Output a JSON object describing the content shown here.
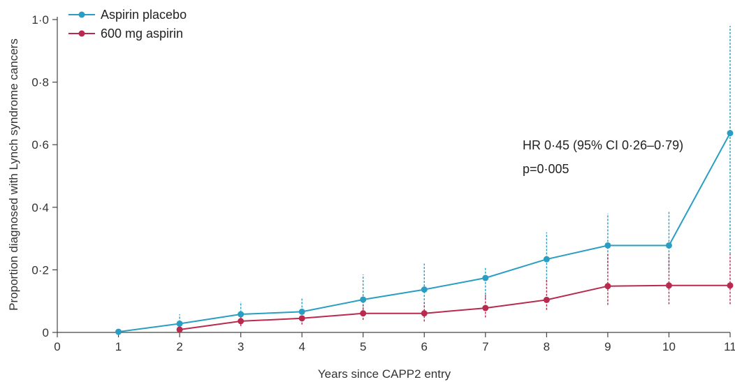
{
  "chart_data": {
    "type": "line",
    "xlabel": "Years since CAPP2 entry",
    "ylabel": "Proportion diagnosed with Lynch syndrome cancers",
    "x_ticks": [
      "0",
      "1",
      "2",
      "3",
      "4",
      "5",
      "6",
      "7",
      "8",
      "9",
      "10",
      "11"
    ],
    "y_ticks": [
      {
        "value": 0,
        "label": "0"
      },
      {
        "value": 0.2,
        "label": "0·2"
      },
      {
        "value": 0.4,
        "label": "0·4"
      },
      {
        "value": 0.6,
        "label": "0·6"
      },
      {
        "value": 0.8,
        "label": "0·8"
      },
      {
        "value": 1.0,
        "label": "1·0"
      }
    ],
    "xlim": [
      0,
      11
    ],
    "ylim": [
      0,
      1.0
    ],
    "grid": false,
    "legend_position": "top-left",
    "annotations": [
      "HR 0·45 (95% CI 0·26–0·79)",
      "p=0·005"
    ],
    "series": [
      {
        "name": "Aspirin placebo",
        "color": "#2a9ec2",
        "x": [
          1,
          2,
          3,
          4,
          5,
          6,
          7,
          8,
          9,
          10,
          11
        ],
        "y": [
          0.002,
          0.028,
          0.058,
          0.066,
          0.105,
          0.137,
          0.174,
          0.234,
          0.278,
          0.278,
          0.637
        ],
        "ci_low": [
          null,
          0.01,
          0.03,
          0.035,
          0.06,
          0.08,
          0.11,
          0.16,
          0.2,
          0.2,
          0.25
        ],
        "ci_high": [
          null,
          0.058,
          0.098,
          0.108,
          0.185,
          0.22,
          0.21,
          0.32,
          0.38,
          0.385,
          0.98
        ]
      },
      {
        "name": "600 mg aspirin",
        "color": "#b82a4e",
        "x": [
          2,
          3,
          4,
          5,
          6,
          7,
          8,
          9,
          10,
          11
        ],
        "y": [
          0.009,
          0.036,
          0.045,
          0.061,
          0.061,
          0.078,
          0.104,
          0.148,
          0.15,
          0.15
        ],
        "ci_low": [
          null,
          0.02,
          0.025,
          0.04,
          0.035,
          0.048,
          0.072,
          0.088,
          0.09,
          0.09
        ],
        "ci_high": [
          null,
          0.055,
          0.065,
          0.09,
          0.095,
          0.12,
          0.17,
          0.25,
          0.25,
          0.25
        ]
      }
    ]
  }
}
